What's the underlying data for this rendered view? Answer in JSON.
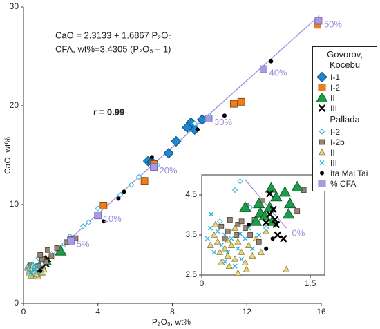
{
  "chart_data": [
    {
      "type": "scatter",
      "x_label": "P₂O₅, wt%",
      "y_label": "CaO, wt%",
      "equation": "CaO = 2.3133 + 1.6867 P₂O₅",
      "cfa_equation": "CFA, wt%=3.4305 (P₂O₅ – 1)",
      "r_label": "r = 0.99",
      "xlim": [
        0,
        16
      ],
      "xticks": [
        0,
        4,
        8,
        12,
        16
      ],
      "ylim": [
        0,
        30
      ],
      "yticks": [
        0,
        10,
        20,
        30
      ],
      "line": {
        "color": "#9b8fd6",
        "x": [
          0.3,
          15.9
        ],
        "values": [
          2.82,
          29.13
        ]
      },
      "legend": {
        "groups": [
          {
            "title": "Govorov, Kocebu",
            "series": [
              0,
              1,
              2,
              3
            ]
          },
          {
            "title": "Pallada",
            "series": [
              4,
              5,
              6,
              7,
              8,
              9
            ]
          }
        ]
      },
      "series": [
        {
          "name": "I-1",
          "marker": "diamond",
          "color": "#1e88d0",
          "x": [
            8.2,
            9.0,
            9.6,
            9.2,
            7.8,
            8.8,
            6.7,
            6.9
          ],
          "values": [
            16.4,
            18.3,
            18.6,
            17.6,
            15.2,
            17.8,
            14.4,
            14.3
          ]
        },
        {
          "name": "I-2",
          "marker": "square",
          "color": "#ee7d1c",
          "x": [
            15.8,
            11.3,
            11.7,
            7.0,
            6.5,
            4.3
          ],
          "values": [
            28.2,
            20.2,
            20.4,
            14.1,
            12.4,
            9.9
          ]
        },
        {
          "name": "II",
          "marker": "triangle",
          "color": "#1c9c48",
          "x": [
            2.0,
            1.2,
            0.9
          ],
          "values": [
            5.3,
            4.3,
            3.9
          ]
        },
        {
          "name": "III",
          "marker": "cross",
          "color": "#000000",
          "x": [
            1.0,
            1.2,
            0.8,
            1.3,
            0.6
          ],
          "values": [
            3.6,
            4.0,
            3.2,
            4.5,
            3.4
          ]
        },
        {
          "name": "I-2",
          "marker": "open-diamond",
          "color": "#3bb3d8",
          "x": [
            2.5,
            3.2,
            3.5,
            5.2,
            5.8,
            6.2,
            7.2,
            9.2,
            10.0,
            0.5,
            1.0,
            0.8,
            1.5,
            2.2,
            4.0
          ],
          "values": [
            6.8,
            7.8,
            8.2,
            11.0,
            12.0,
            12.8,
            14.0,
            18.2,
            19.0,
            3.5,
            4.0,
            4.6,
            5.0,
            6.0,
            9.6
          ]
        },
        {
          "name": "I-2b",
          "marker": "small-square",
          "color": "#9a8472",
          "x": [
            1.2,
            1.8,
            2.3,
            2.5,
            0.8,
            1.0,
            0.6,
            2.8,
            1.5,
            1.3,
            0.4,
            0.9
          ],
          "values": [
            4.2,
            5.6,
            6.2,
            6.5,
            3.8,
            4.5,
            3.5,
            6.6,
            4.8,
            5.4,
            3.9,
            4.9
          ]
        },
        {
          "name": "II",
          "marker": "small-triangle",
          "color": "#e6d67c",
          "x": [
            0.3,
            0.5,
            0.7,
            0.4,
            0.6,
            0.9,
            1.1,
            0.2,
            0.8,
            0.5,
            1.0,
            0.3,
            0.7
          ],
          "values": [
            3.3,
            3.0,
            3.6,
            2.8,
            3.2,
            3.0,
            3.4,
            3.6,
            2.7,
            3.8,
            3.1,
            3.0,
            2.9
          ]
        },
        {
          "name": "III",
          "marker": "small-cross",
          "color": "#29aee0",
          "x": [
            0.2,
            0.4,
            0.6,
            0.3,
            0.8,
            0.5,
            0.7,
            0.9,
            0.4,
            0.6
          ],
          "values": [
            3.5,
            3.2,
            3.4,
            3.8,
            3.1,
            2.9,
            3.7,
            3.3,
            3.0,
            3.9
          ]
        },
        {
          "name": "Ita Mai Tai",
          "marker": "dot",
          "color": "#000000",
          "x": [
            13.3,
            10.8,
            9.35,
            6.9,
            5.4,
            4.3,
            5.1,
            0.9
          ],
          "values": [
            24.5,
            19.0,
            17.6,
            14.8,
            11.3,
            8.3,
            10.6,
            3.3
          ]
        },
        {
          "name": "% CFA",
          "marker": "cfa-square",
          "color": "#a99be0",
          "x": [
            15.85,
            12.9,
            9.95,
            7.0,
            4.0,
            2.55
          ],
          "values": [
            28.6,
            23.7,
            18.7,
            13.8,
            8.9,
            6.35
          ],
          "labels": [
            "50%",
            "40%",
            "30%",
            "20%",
            "10%",
            "5%"
          ]
        }
      ]
    },
    {
      "type": "scatter",
      "xlim": [
        0,
        1.7
      ],
      "xticks": [
        0,
        1.5
      ],
      "ylim": [
        2.5,
        5.0
      ],
      "yticks": [
        2.5,
        3.5,
        4.5
      ],
      "line": {
        "color": "#9b8fd6",
        "x": [
          0.6,
          1.17
        ],
        "values": [
          4.88,
          3.67
        ],
        "end_label": "0%"
      },
      "series": [
        {
          "marker": "small-triangle",
          "color": "#e6d67c",
          "x": [
            0.17,
            0.22,
            0.32,
            0.36,
            0.41,
            0.46,
            0.5,
            0.55,
            0.6,
            0.65,
            0.27,
            0.38,
            0.7,
            0.75,
            0.46,
            0.19,
            0.12,
            0.62,
            0.82,
            0.89,
            1.17,
            0.5,
            0.25,
            0.36
          ],
          "values": [
            3.5,
            3.33,
            3.16,
            2.98,
            3.24,
            2.9,
            3.33,
            3.07,
            2.81,
            3.24,
            2.81,
            2.72,
            2.98,
            3.41,
            3.67,
            3.76,
            3.24,
            2.64,
            3.07,
            3.59,
            2.64,
            2.55,
            3.07,
            3.36
          ]
        },
        {
          "marker": "small-cross",
          "color": "#29aee0",
          "x": [
            0.12,
            0.22,
            0.32,
            0.41,
            0.5,
            0.27,
            0.17,
            0.36,
            0.6,
            0.7,
            0.46,
            0.08,
            0.65,
            0.79,
            0.55,
            0.32,
            0.53,
            0.13
          ],
          "values": [
            3.67,
            3.59,
            3.5,
            3.41,
            3.16,
            3.24,
            3.07,
            3.07,
            3.41,
            3.16,
            2.72,
            3.41,
            3.67,
            3.5,
            2.9,
            2.84,
            3.53,
            4.02
          ]
        },
        {
          "marker": "small-square",
          "color": "#9a8472",
          "x": [
            0.39,
            0.5,
            0.27,
            0.36,
            0.62,
            0.84,
            0.6,
            0.73,
            1.32,
            0.67,
            0.48,
            0.79,
            1.41,
            0.32,
            0.55
          ],
          "values": [
            3.88,
            3.76,
            3.71,
            3.59,
            4.22,
            4.36,
            3.67,
            3.88,
            4.1,
            3.5,
            3.5,
            3.33,
            4.62,
            3.41,
            3.84
          ]
        },
        {
          "marker": "open-diamond",
          "color": "#3bb3d8",
          "x": [
            0.53,
            0.46,
            0.67,
            0.25,
            0.89
          ],
          "values": [
            4.84,
            4.62,
            4.19,
            3.84,
            3.67
          ]
        },
        {
          "marker": "triangle",
          "color": "#1c9c48",
          "x": [
            0.79,
            0.96,
            1.15,
            0.81,
            0.94,
            1.22,
            1.03,
            0.75,
            0.6,
            1.2,
            1.32,
            0.87,
            0.98
          ],
          "values": [
            4.28,
            4.67,
            4.57,
            4.05,
            4.19,
            4.28,
            4.45,
            3.84,
            4.19,
            4.02,
            4.7,
            3.97,
            3.84
          ]
        },
        {
          "marker": "dot",
          "color": "#000000",
          "x": [
            0.89,
            0.98,
            0.65
          ],
          "values": [
            3.16,
            3.41,
            3.76
          ]
        },
        {
          "marker": "cross",
          "color": "#000000",
          "x": [
            0.94,
            1.01,
            1.03,
            0.99,
            1.05,
            1.13,
            0.89,
            0.94
          ],
          "values": [
            4.02,
            3.88,
            3.76,
            4.14,
            3.5,
            3.41,
            3.81,
            4.53
          ]
        }
      ]
    }
  ]
}
